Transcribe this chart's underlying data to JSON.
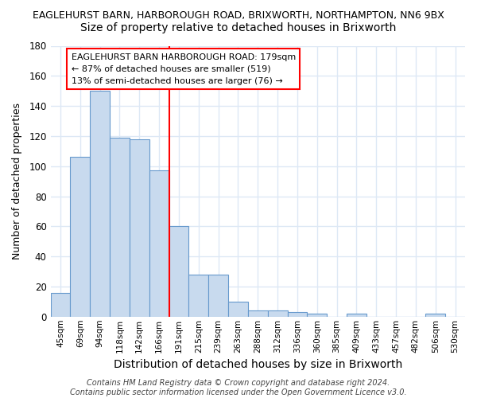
{
  "title1": "EAGLEHURST BARN, HARBOROUGH ROAD, BRIXWORTH, NORTHAMPTON, NN6 9BX",
  "title2": "Size of property relative to detached houses in Brixworth",
  "xlabel": "Distribution of detached houses by size in Brixworth",
  "ylabel": "Number of detached properties",
  "categories": [
    "45sqm",
    "69sqm",
    "94sqm",
    "118sqm",
    "142sqm",
    "166sqm",
    "191sqm",
    "215sqm",
    "239sqm",
    "263sqm",
    "288sqm",
    "312sqm",
    "336sqm",
    "360sqm",
    "385sqm",
    "409sqm",
    "433sqm",
    "457sqm",
    "482sqm",
    "506sqm",
    "530sqm"
  ],
  "values": [
    16,
    106,
    150,
    119,
    118,
    97,
    60,
    28,
    28,
    10,
    4,
    4,
    3,
    2,
    0,
    2,
    0,
    0,
    0,
    2,
    0
  ],
  "bar_color": "#c8daee",
  "bar_edge_color": "#6699cc",
  "bar_edge_width": 0.8,
  "red_line_x": 5.5,
  "annotation_text": "EAGLEHURST BARN HARBOROUGH ROAD: 179sqm\n← 87% of detached houses are smaller (519)\n13% of semi-detached houses are larger (76) →",
  "footer_text": "Contains HM Land Registry data © Crown copyright and database right 2024.\nContains public sector information licensed under the Open Government Licence v3.0.",
  "ylim": [
    0,
    180
  ],
  "background_color": "#ffffff",
  "grid_color": "#dde8f5",
  "yticks": [
    0,
    20,
    40,
    60,
    80,
    100,
    120,
    140,
    160,
    180
  ],
  "title1_fontsize": 9,
  "title2_fontsize": 10,
  "xlabel_fontsize": 10,
  "ylabel_fontsize": 9,
  "annot_fontsize": 8,
  "footer_fontsize": 7
}
